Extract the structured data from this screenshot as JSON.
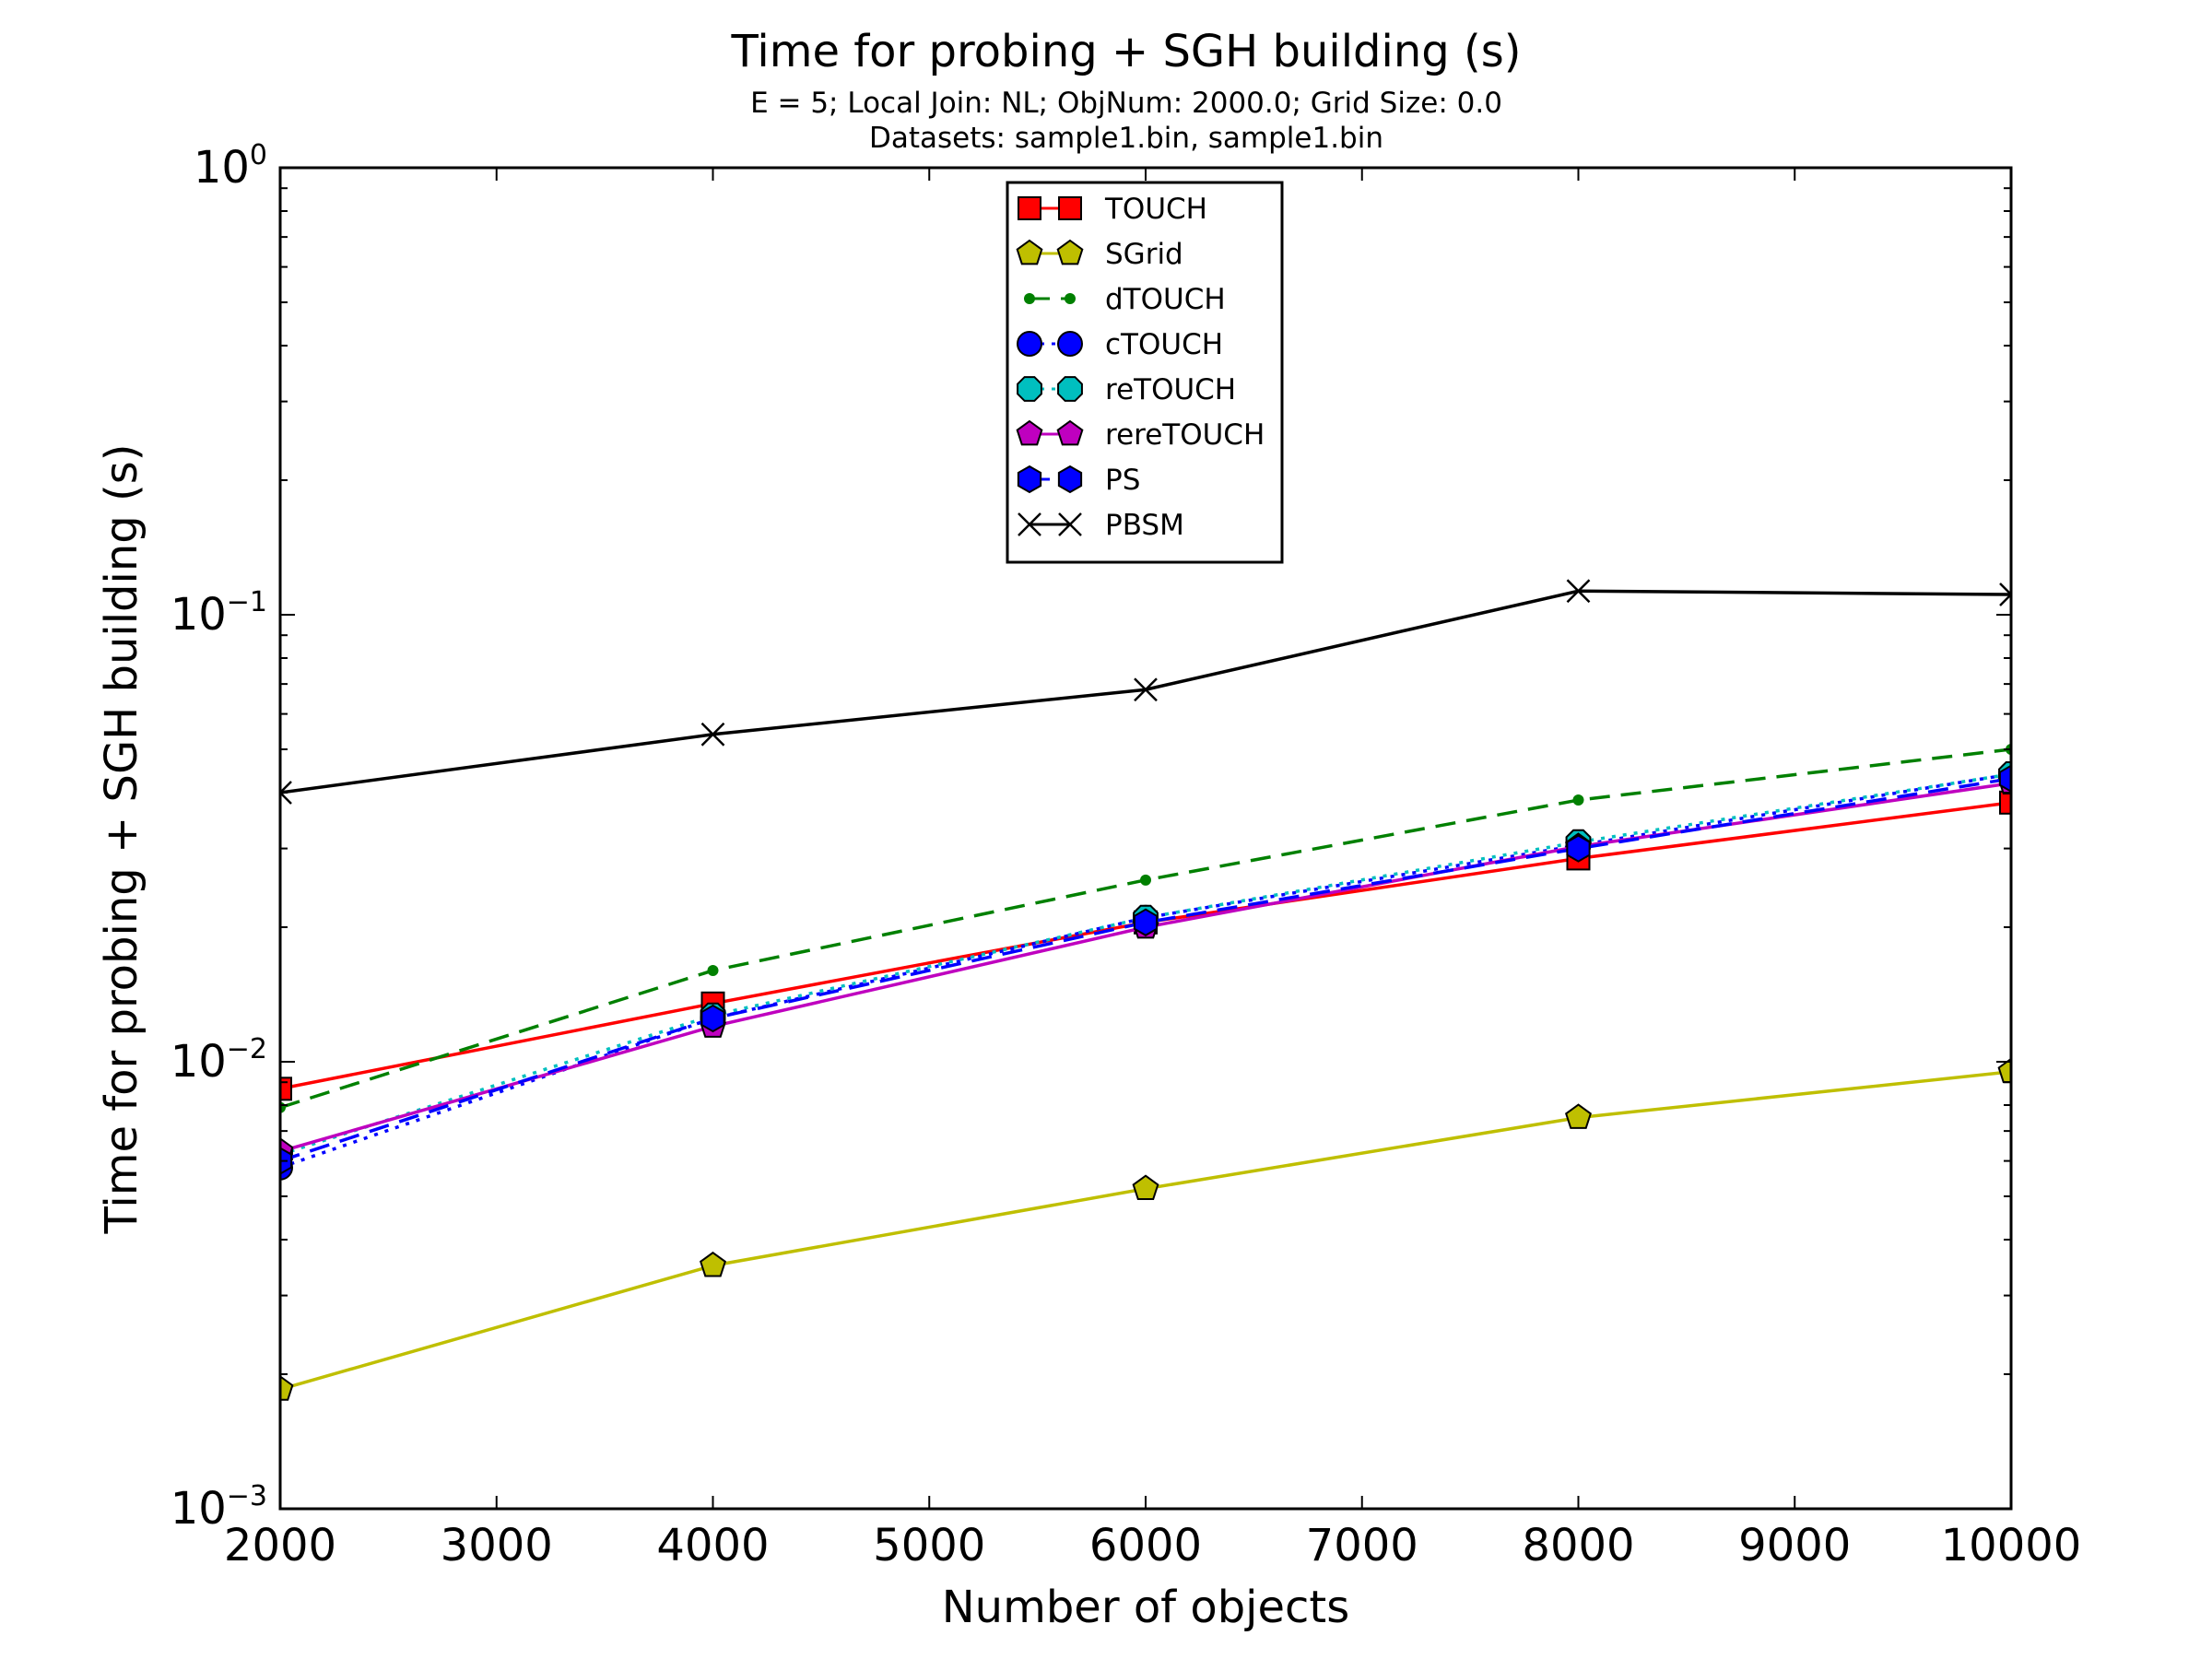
{
  "chart_data": {
    "type": "line",
    "title": "Time for probing + SGH building (s)",
    "subtitle_lines": [
      "E = 5; Local Join: NL; ObjNum: 2000.0; Grid Size: 0.0",
      "Datasets: sample1.bin, sample1.bin"
    ],
    "xlabel": "Number of objects",
    "ylabel": "Time for probing + SGH building (s)",
    "xlim": [
      2000,
      10000
    ],
    "ylim": [
      0.001,
      1
    ],
    "yscale": "log",
    "grid": false,
    "legend_position": "upper-center",
    "x_ticks": [
      2000,
      3000,
      4000,
      5000,
      6000,
      7000,
      8000,
      9000,
      10000
    ],
    "x_tick_labels": [
      "2000",
      "3000",
      "4000",
      "5000",
      "6000",
      "7000",
      "8000",
      "9000",
      "10000"
    ],
    "y_ticks": [
      {
        "value": 0.001,
        "base": "10",
        "exp": "−3"
      },
      {
        "value": 0.01,
        "base": "10",
        "exp": "−2"
      },
      {
        "value": 0.1,
        "base": "10",
        "exp": "−1"
      },
      {
        "value": 1,
        "base": "10",
        "exp": "0"
      }
    ],
    "x": [
      2000,
      4000,
      6000,
      8000,
      10000
    ],
    "series": [
      {
        "name": "TOUCH",
        "values": [
          0.0087,
          0.0135,
          0.0205,
          0.0285,
          0.038
        ],
        "color": "#ff0000",
        "dash": "solid",
        "marker": "square"
      },
      {
        "name": "SGrid",
        "values": [
          0.00185,
          0.0035,
          0.0052,
          0.0075,
          0.0095
        ],
        "color": "#bfbf00",
        "dash": "solid",
        "marker": "pentagon"
      },
      {
        "name": "dTOUCH",
        "values": [
          0.0079,
          0.016,
          0.0255,
          0.0385,
          0.05
        ],
        "color": "#008000",
        "dash": "dashed",
        "marker": "point"
      },
      {
        "name": "cTOUCH",
        "values": [
          0.0058,
          0.0125,
          0.021,
          0.0305,
          0.044
        ],
        "color": "#0000ff",
        "dash": "dotted",
        "marker": "circle"
      },
      {
        "name": "reTOUCH",
        "values": [
          0.0062,
          0.0127,
          0.021,
          0.031,
          0.044
        ],
        "color": "#00bfbf",
        "dash": "dotted",
        "marker": "octagon"
      },
      {
        "name": "rereTOUCH",
        "values": [
          0.0063,
          0.012,
          0.02,
          0.0303,
          0.042
        ],
        "color": "#bf00bf",
        "dash": "solid",
        "marker": "pentagon"
      },
      {
        "name": "PS",
        "values": [
          0.006,
          0.0125,
          0.0205,
          0.03,
          0.043
        ],
        "color": "#0000ff",
        "dash": "dashed",
        "marker": "hexagon"
      },
      {
        "name": "PBSM",
        "values": [
          0.04,
          0.054,
          0.068,
          0.113,
          0.111
        ],
        "color": "#000000",
        "dash": "solid",
        "marker": "x"
      }
    ]
  }
}
